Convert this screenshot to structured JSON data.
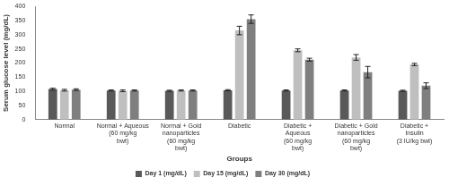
{
  "chart_data": {
    "type": "bar",
    "x_label": "Groups",
    "y_label": "Serum glucose level (mg/dL)",
    "categories": [
      "Normal",
      "Normal + Aqueous\n(60 mg/kg\nbwt)",
      "Normal + Gold\nnanoparticles\n(60 mg/kg\nbwt)",
      "Diabetic",
      "Diabetic +\nAqueous\n(60 mg/kg\nbwt)",
      "Diabetic + Gold\nnanoparticles\n(60 mg/kg\nbwt)",
      "Diabetic +\nInsulin\n(3 IU/kg bwt)"
    ],
    "series": [
      {
        "name": "Day 1 (mg/dL)",
        "color": "#595959",
        "values": [
          108,
          103,
          102,
          104,
          103,
          103,
          102
        ],
        "errors": [
          3,
          2,
          2,
          2,
          2,
          2,
          2
        ]
      },
      {
        "name": "Day 15 (mg/dL)",
        "color": "#bfbfbf",
        "values": [
          104,
          102,
          103,
          315,
          245,
          220,
          195
        ],
        "errors": [
          3,
          3,
          2,
          15,
          5,
          10,
          4
        ]
      },
      {
        "name": "Day 30 (mg/dL)",
        "color": "#7f7f7f",
        "values": [
          106,
          103,
          103,
          355,
          212,
          168,
          120
        ],
        "errors": [
          3,
          2,
          2,
          15,
          5,
          20,
          10
        ]
      }
    ],
    "ylim": [
      0,
      400
    ],
    "yticks": [
      0,
      50,
      100,
      150,
      200,
      250,
      300,
      350,
      400
    ],
    "grid": false,
    "legend": "bottom"
  }
}
